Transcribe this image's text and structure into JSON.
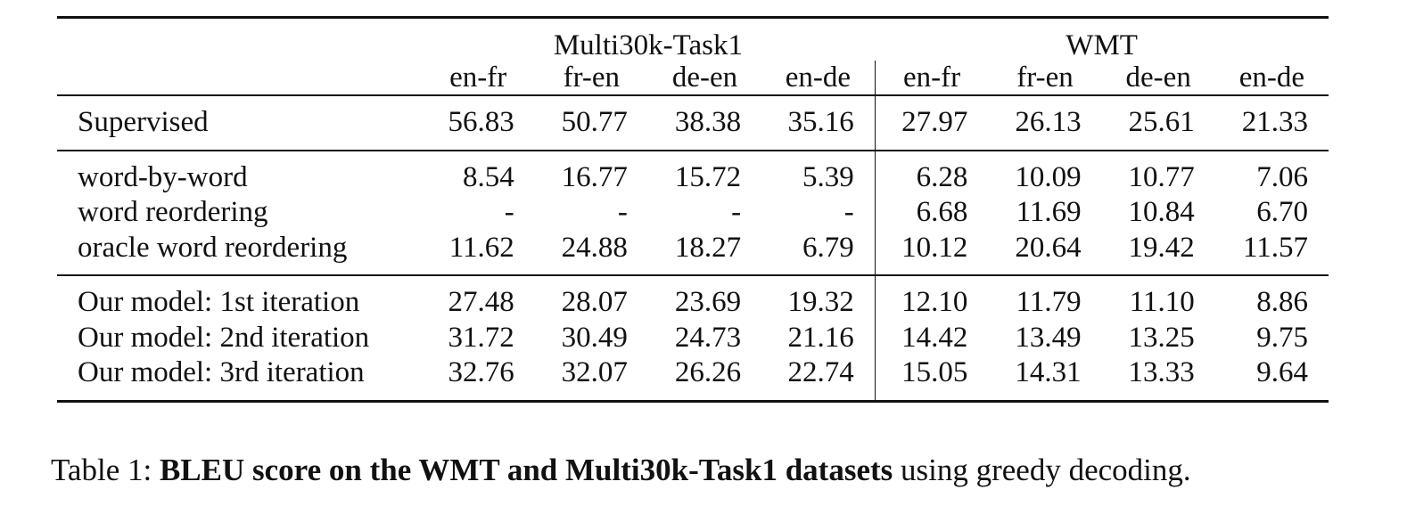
{
  "table": {
    "group_headers": [
      "Multi30k-Task1",
      "WMT"
    ],
    "column_headers": [
      "en-fr",
      "fr-en",
      "de-en",
      "en-de",
      "en-fr",
      "fr-en",
      "de-en",
      "en-de"
    ],
    "blocks": [
      {
        "rows": [
          {
            "label": "Supervised",
            "values": [
              "56.83",
              "50.77",
              "38.38",
              "35.16",
              "27.97",
              "26.13",
              "25.61",
              "21.33"
            ]
          }
        ]
      },
      {
        "rows": [
          {
            "label": "word-by-word",
            "values": [
              "8.54",
              "16.77",
              "15.72",
              "5.39",
              "6.28",
              "10.09",
              "10.77",
              "7.06"
            ]
          },
          {
            "label": "word reordering",
            "values": [
              "-",
              "-",
              "-",
              "-",
              "6.68",
              "11.69",
              "10.84",
              "6.70"
            ]
          },
          {
            "label": "oracle word reordering",
            "values": [
              "11.62",
              "24.88",
              "18.27",
              "6.79",
              "10.12",
              "20.64",
              "19.42",
              "11.57"
            ]
          }
        ]
      },
      {
        "rows": [
          {
            "label": "Our model: 1st iteration",
            "values": [
              "27.48",
              "28.07",
              "23.69",
              "19.32",
              "12.10",
              "11.79",
              "11.10",
              "8.86"
            ]
          },
          {
            "label": "Our model: 2nd iteration",
            "values": [
              "31.72",
              "30.49",
              "24.73",
              "21.16",
              "14.42",
              "13.49",
              "13.25",
              "9.75"
            ]
          },
          {
            "label": "Our model: 3rd iteration",
            "values": [
              "32.76",
              "32.07",
              "26.26",
              "22.74",
              "15.05",
              "14.31",
              "13.33",
              "9.64"
            ]
          }
        ]
      }
    ]
  },
  "caption": {
    "prefix": "Table 1: ",
    "bold": "BLEU score on the WMT and Multi30k-Task1 datasets",
    "suffix": " using greedy decoding."
  }
}
